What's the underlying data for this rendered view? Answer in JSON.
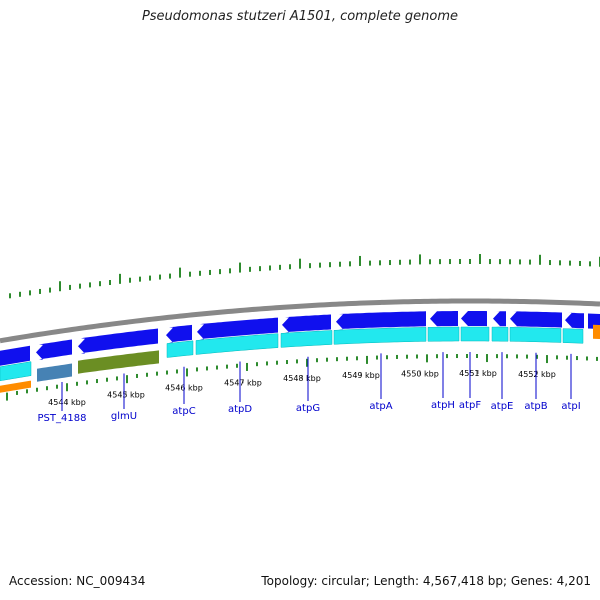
{
  "header": {
    "title": "Pseudomonas stutzeri A1501, complete genome"
  },
  "footer": {
    "accession": "Accession: NC_009434",
    "summary": "Topology: circular; Length: 4,567,418 bp; Genes: 4,201"
  },
  "map": {
    "colors": {
      "backbone": "#888888",
      "forward_gene": "#1010ee",
      "cds": "#22e8ee",
      "olive": "#6b8e23",
      "steelblue": "#4682b4",
      "orange": "#ff8c00",
      "gc_tick": "#2e8b2e",
      "label": "#0000cc"
    },
    "ticks": [
      {
        "label": "4544 kbp",
        "kbp": 4544
      },
      {
        "label": "4545 kbp",
        "kbp": 4545
      },
      {
        "label": "4546 kbp",
        "kbp": 4546
      },
      {
        "label": "4547 kbp",
        "kbp": 4547
      },
      {
        "label": "4548 kbp",
        "kbp": 4548
      },
      {
        "label": "4549 kbp",
        "kbp": 4549
      },
      {
        "label": "4550 kbp",
        "kbp": 4550
      },
      {
        "label": "4551 kbp",
        "kbp": 4551
      },
      {
        "label": "4552 kbp",
        "kbp": 4552
      }
    ],
    "genes": [
      {
        "label": "PST_4188"
      },
      {
        "label": "glmU"
      },
      {
        "label": "atpC"
      },
      {
        "label": "atpD"
      },
      {
        "label": "atpG"
      },
      {
        "label": "atpA"
      },
      {
        "label": "atpH"
      },
      {
        "label": "atpF"
      },
      {
        "label": "atpE"
      },
      {
        "label": "atpB"
      },
      {
        "label": "atpI"
      }
    ]
  }
}
